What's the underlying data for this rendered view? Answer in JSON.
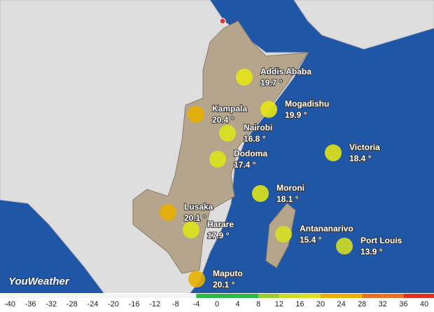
{
  "logo": "YouWeather",
  "cities": [
    {
      "name": "Addis Ababa",
      "value": 19.7,
      "label": "19.7 °"
    },
    {
      "name": "Kampala",
      "value": 20.4,
      "label": "20.4 °"
    },
    {
      "name": "Mogadishu",
      "value": 19.9,
      "label": "19.9 °"
    },
    {
      "name": "Nairobi",
      "value": 16.8,
      "label": "16.8 °"
    },
    {
      "name": "Victoria",
      "value": 18.4,
      "label": "18.4 °"
    },
    {
      "name": "Dodoma",
      "value": 17.4,
      "label": "17.4 °"
    },
    {
      "name": "Moroni",
      "value": 18.1,
      "label": "18.1 °"
    },
    {
      "name": "Lusaka",
      "value": 20.1,
      "label": "20.1 °"
    },
    {
      "name": "Harare",
      "value": 17.9,
      "label": "17.9 °"
    },
    {
      "name": "Antananarivo",
      "value": 15.4,
      "label": "15.4 °"
    },
    {
      "name": "Port Louis",
      "value": 13.9,
      "label": "13.9 °"
    },
    {
      "name": "Maputo",
      "value": 20.1,
      "label": "20.1 °"
    }
  ],
  "scale": {
    "ticks": [
      -40,
      -36,
      -32,
      -28,
      -24,
      -20,
      -16,
      -12,
      -8,
      -4,
      0,
      4,
      8,
      12,
      16,
      20,
      24,
      28,
      32,
      36,
      40
    ]
  }
}
